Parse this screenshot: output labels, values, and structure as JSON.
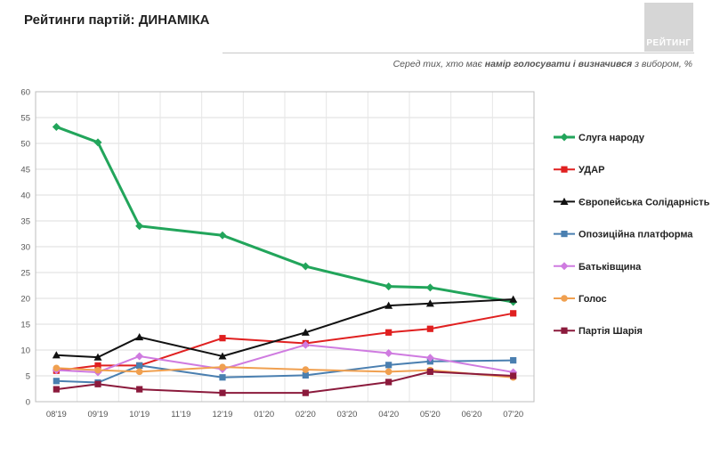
{
  "header": {
    "title": "Рейтинги партій: ДИНАМІКА",
    "logo_text": "РЕЙТИНГ",
    "subtitle_prefix": "Серед тих, хто має ",
    "subtitle_bold": "намір голосувати і визначився",
    "subtitle_suffix": " з вибором, %"
  },
  "chart_data": {
    "type": "line",
    "categories": [
      "08'19",
      "09'19",
      "10'19",
      "11'19",
      "12'19",
      "01'20",
      "02'20",
      "03'20",
      "04'20",
      "05'20",
      "06'20",
      "07'20"
    ],
    "ylim": [
      0,
      60
    ],
    "yticks": [
      0,
      5,
      10,
      15,
      20,
      25,
      30,
      35,
      40,
      45,
      50,
      55,
      60
    ],
    "grid": true,
    "legend_position": "right",
    "series": [
      {
        "name": "Слуга народу",
        "color": "#22a55b",
        "marker": "diamond",
        "width": 3,
        "values": [
          53.2,
          50.2,
          34.0,
          null,
          32.2,
          null,
          26.2,
          null,
          22.3,
          22.1,
          null,
          19.3
        ]
      },
      {
        "name": "УДАР",
        "color": "#e02020",
        "marker": "square",
        "width": 2,
        "values": [
          6.0,
          7.0,
          7.0,
          null,
          12.3,
          null,
          11.3,
          null,
          13.4,
          14.1,
          null,
          17.1
        ]
      },
      {
        "name": "Європейська Солідарність",
        "color": "#111111",
        "marker": "triangle",
        "width": 2,
        "values": [
          9.0,
          8.6,
          12.5,
          null,
          8.8,
          null,
          13.4,
          null,
          18.6,
          19.0,
          null,
          19.8
        ]
      },
      {
        "name": "Опозиційна платформа",
        "color": "#4a7fb0",
        "marker": "square",
        "width": 2,
        "values": [
          4.0,
          3.7,
          7.0,
          null,
          4.7,
          null,
          5.1,
          null,
          7.1,
          7.8,
          null,
          8.0
        ]
      },
      {
        "name": "Батьківщина",
        "color": "#cf7be0",
        "marker": "diamond",
        "width": 2,
        "values": [
          6.1,
          5.7,
          8.8,
          null,
          6.3,
          null,
          11.0,
          null,
          9.4,
          8.5,
          null,
          5.7
        ]
      },
      {
        "name": "Голос",
        "color": "#f0a050",
        "marker": "circle",
        "width": 2,
        "values": [
          6.5,
          6.1,
          5.8,
          null,
          6.7,
          null,
          6.2,
          null,
          5.8,
          6.1,
          null,
          4.7
        ]
      },
      {
        "name": "Партія Шарія",
        "color": "#8b1a3c",
        "marker": "square",
        "width": 2,
        "values": [
          2.4,
          3.4,
          2.4,
          null,
          1.7,
          null,
          1.7,
          null,
          3.8,
          5.8,
          null,
          5.0
        ]
      }
    ]
  }
}
